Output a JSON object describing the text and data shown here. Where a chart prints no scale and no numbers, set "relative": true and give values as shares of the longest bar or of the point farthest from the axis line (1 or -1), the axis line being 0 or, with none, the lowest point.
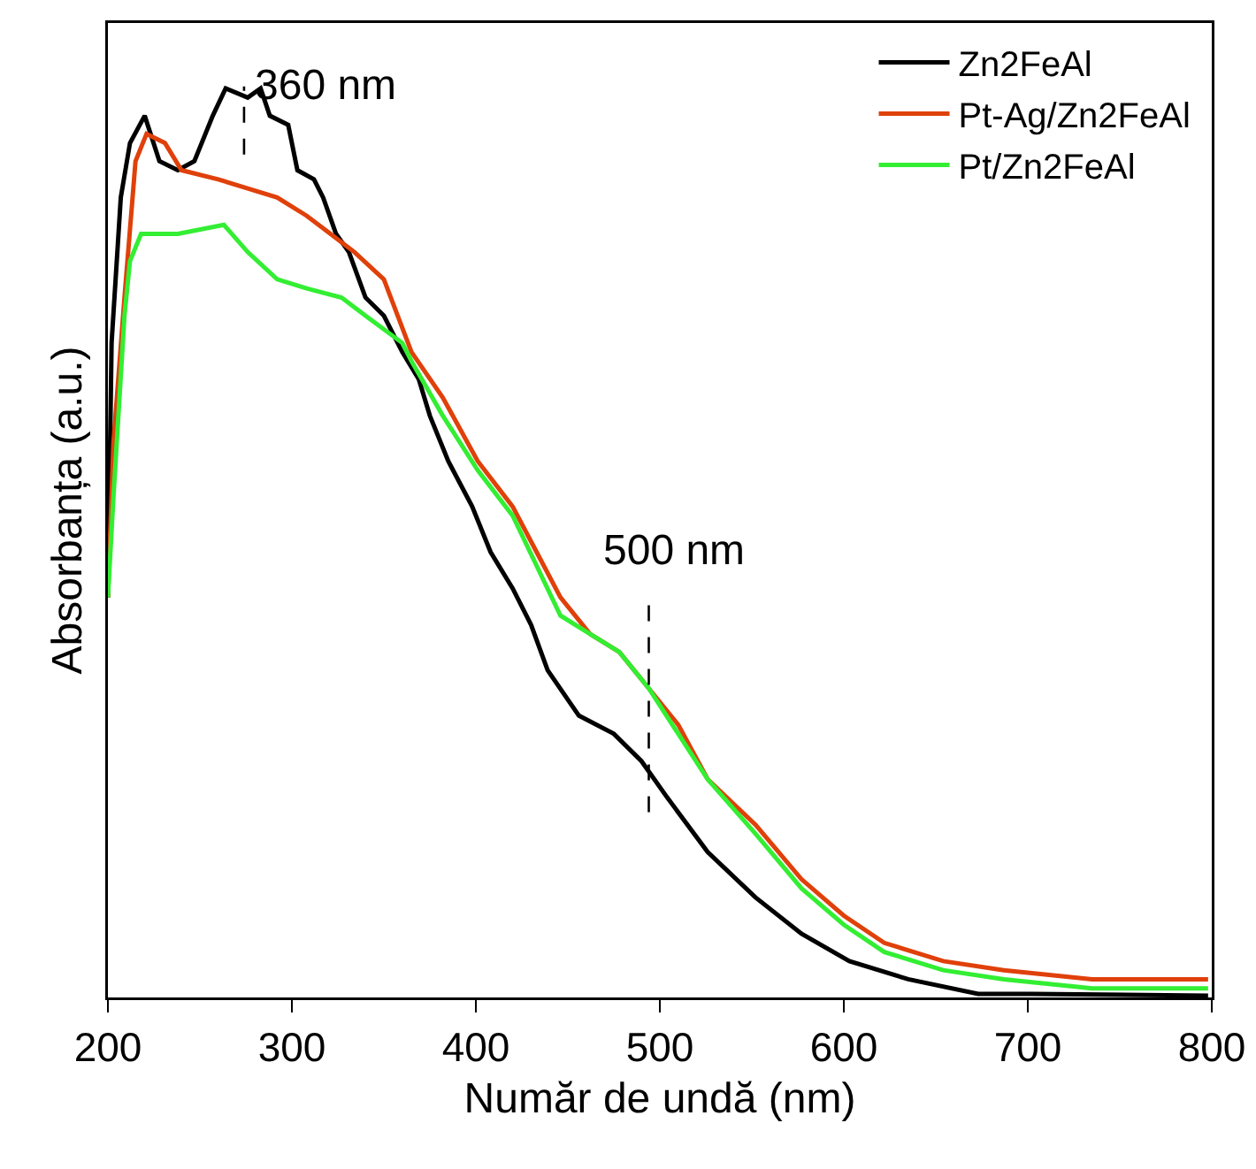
{
  "chart_data": {
    "type": "line",
    "relative": true,
    "xlabel": "Număr de undă (nm)",
    "ylabel": "Absorbanța (a.u.)",
    "xlim": [
      200,
      800
    ],
    "xticks": [
      200,
      300,
      400,
      500,
      600,
      700,
      800
    ],
    "grid": false,
    "legend": "top right",
    "marker": "none",
    "line_style": "solid",
    "ref_lines": [
      {
        "axis": "x",
        "value": 274,
        "label": "360 nm",
        "color": "#000000",
        "line_style": "dashed"
      },
      {
        "axis": "x",
        "value": 494,
        "label": "500 nm",
        "color": "#000000",
        "line_style": "dashed"
      }
    ],
    "series": [
      {
        "name": "Zn2FeAl",
        "color": "#000000",
        "x": [
          200,
          202,
          207,
          212,
          220,
          228,
          238,
          247,
          257,
          264,
          276,
          283,
          288,
          298,
          303,
          312,
          317,
          324,
          331,
          340,
          350,
          360,
          369,
          375,
          385,
          398,
          408,
          420,
          430,
          439,
          456,
          475,
          490,
          504,
          526,
          552,
          577,
          603,
          635,
          673,
          702,
          798
        ],
        "values": [
          0.44,
          0.72,
          0.88,
          0.94,
          0.97,
          0.92,
          0.91,
          0.92,
          0.97,
          1.0,
          0.99,
          1.0,
          0.97,
          0.96,
          0.91,
          0.9,
          0.88,
          0.84,
          0.82,
          0.77,
          0.75,
          0.71,
          0.68,
          0.64,
          0.59,
          0.54,
          0.49,
          0.45,
          0.41,
          0.36,
          0.31,
          0.29,
          0.26,
          0.22,
          0.16,
          0.11,
          0.07,
          0.04,
          0.02,
          0.004,
          0.004,
          0.002
        ]
      },
      {
        "name": "Pt-Ag/Zn2FeAl",
        "color": "#e0400a",
        "x": [
          200,
          203,
          209,
          215,
          221,
          231,
          240,
          260,
          276,
          292,
          308,
          321,
          334,
          350,
          365,
          382,
          401,
          420,
          433,
          446,
          462,
          478,
          494,
          510,
          526,
          552,
          577,
          600,
          622,
          654,
          687,
          735,
          798
        ],
        "values": [
          0.44,
          0.61,
          0.77,
          0.92,
          0.95,
          0.94,
          0.91,
          0.9,
          0.89,
          0.88,
          0.86,
          0.84,
          0.82,
          0.79,
          0.71,
          0.66,
          0.59,
          0.54,
          0.49,
          0.44,
          0.4,
          0.38,
          0.34,
          0.3,
          0.24,
          0.19,
          0.13,
          0.09,
          0.06,
          0.04,
          0.03,
          0.02,
          0.02
        ]
      },
      {
        "name": "Pt/Zn2FeAl",
        "color": "#33ee33",
        "x": [
          200,
          203,
          209,
          212,
          218,
          238,
          263,
          276,
          292,
          308,
          327,
          340,
          360,
          365,
          382,
          401,
          420,
          446,
          462,
          478,
          494,
          526,
          552,
          577,
          600,
          622,
          654,
          687,
          735,
          798
        ],
        "values": [
          0.44,
          0.55,
          0.75,
          0.81,
          0.84,
          0.84,
          0.85,
          0.82,
          0.79,
          0.78,
          0.77,
          0.75,
          0.72,
          0.7,
          0.64,
          0.58,
          0.53,
          0.42,
          0.4,
          0.38,
          0.34,
          0.24,
          0.18,
          0.12,
          0.08,
          0.05,
          0.03,
          0.02,
          0.01,
          0.01
        ]
      }
    ]
  }
}
